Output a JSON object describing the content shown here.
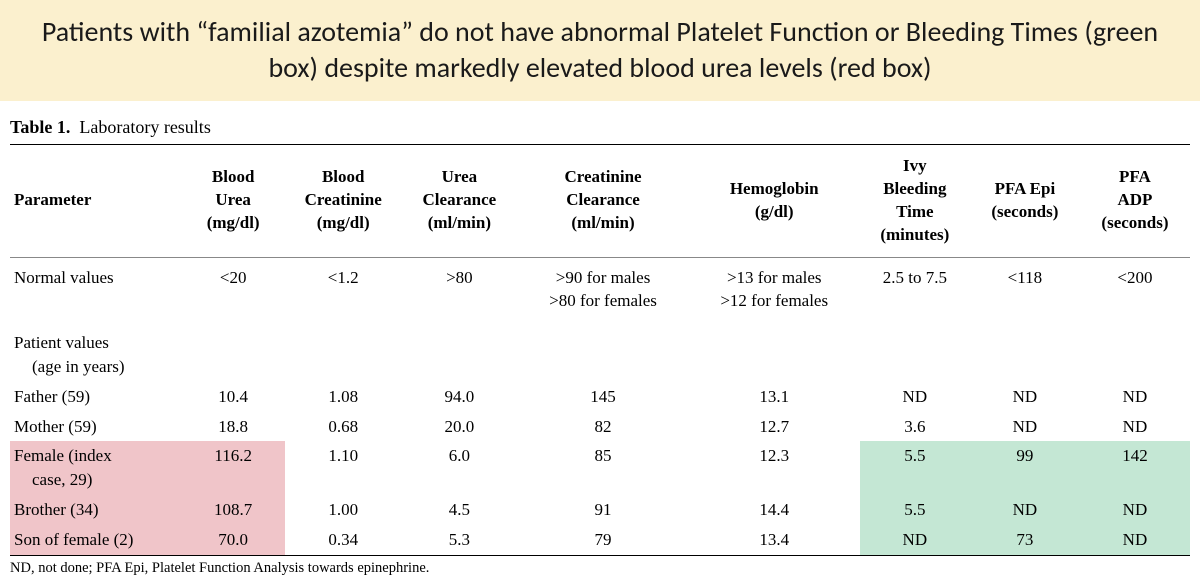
{
  "banner": {
    "text": "Patients with “familial azotemia” do not have abnormal Platelet Function or Bleeding Times (green box) despite markedly elevated blood urea levels (red box)"
  },
  "table": {
    "caption_bold": "Table 1.",
    "caption_rest": "Laboratory results",
    "columns": [
      {
        "key": "param",
        "label_lines": [
          "Parameter"
        ],
        "width": "14%"
      },
      {
        "key": "bu",
        "label_lines": [
          "Blood",
          "Urea",
          "(mg/dl)"
        ],
        "width": "8.5%"
      },
      {
        "key": "bc",
        "label_lines": [
          "Blood",
          "Creatinine",
          "(mg/dl)"
        ],
        "width": "9.5%"
      },
      {
        "key": "uc",
        "label_lines": [
          "Urea",
          "Clearance",
          "(ml/min)"
        ],
        "width": "9.5%"
      },
      {
        "key": "cc",
        "label_lines": [
          "Creatinine",
          "Clearance",
          "(ml/min)"
        ],
        "width": "14%"
      },
      {
        "key": "hb",
        "label_lines": [
          "Hemoglobin",
          "(g/dl)"
        ],
        "width": "14%"
      },
      {
        "key": "ivy",
        "label_lines": [
          "Ivy",
          "Bleeding",
          "Time",
          "(minutes)"
        ],
        "width": "9%"
      },
      {
        "key": "epi",
        "label_lines": [
          "PFA Epi",
          "(seconds)"
        ],
        "width": "9%"
      },
      {
        "key": "adp",
        "label_lines": [
          "PFA",
          "ADP",
          "(seconds)"
        ],
        "width": "9%"
      }
    ],
    "normal_row": {
      "param": "Normal values",
      "bu": "<20",
      "bc": "<1.2",
      "uc": ">80",
      "cc": ">90 for males, >80 for females",
      "hb": ">13 for males, >12 for females",
      "ivy": "2.5 to 7.5",
      "epi": "<118",
      "adp": "<200"
    },
    "section_heading_line1": "Patient values",
    "section_heading_line2": "(age in years)",
    "rows": [
      {
        "param": "Father (59)",
        "bu": "10.4",
        "bc": "1.08",
        "uc": "94.0",
        "cc": "145",
        "hb": "13.1",
        "ivy": "ND",
        "epi": "ND",
        "adp": "ND",
        "hl_red": false,
        "hl_green": false
      },
      {
        "param": "Mother (59)",
        "bu": "18.8",
        "bc": "0.68",
        "uc": "20.0",
        "cc": "82",
        "hb": "12.7",
        "ivy": "3.6",
        "epi": "ND",
        "adp": "ND",
        "hl_red": false,
        "hl_green": false
      },
      {
        "param": "Female (index",
        "param_sub": "case, 29)",
        "bu": "116.2",
        "bc": "1.10",
        "uc": "6.0",
        "cc": "85",
        "hb": "12.3",
        "ivy": "5.5",
        "epi": "99",
        "adp": "142",
        "hl_red": true,
        "hl_green": true
      },
      {
        "param": "Brother (34)",
        "bu": "108.7",
        "bc": "1.00",
        "uc": "4.5",
        "cc": "91",
        "hb": "14.4",
        "ivy": "5.5",
        "epi": "ND",
        "adp": "ND",
        "hl_red": true,
        "hl_green": true
      },
      {
        "param": "Son of female (2)",
        "bu": "70.0",
        "bc": "0.34",
        "uc": "5.3",
        "cc": "79",
        "hb": "13.4",
        "ivy": "ND",
        "epi": "73",
        "adp": "ND",
        "hl_red": true,
        "hl_green": true
      }
    ],
    "footnote": "ND, not done; PFA Epi, Platelet Function Analysis towards epinephrine."
  },
  "style": {
    "banner_bg": "#fbf0ce",
    "red_hl": "#f0c5c9",
    "green_hl": "#c4e7d4",
    "banner_fontsize": 28,
    "body_fontsize": 17,
    "footnote_fontsize": 14.5
  }
}
